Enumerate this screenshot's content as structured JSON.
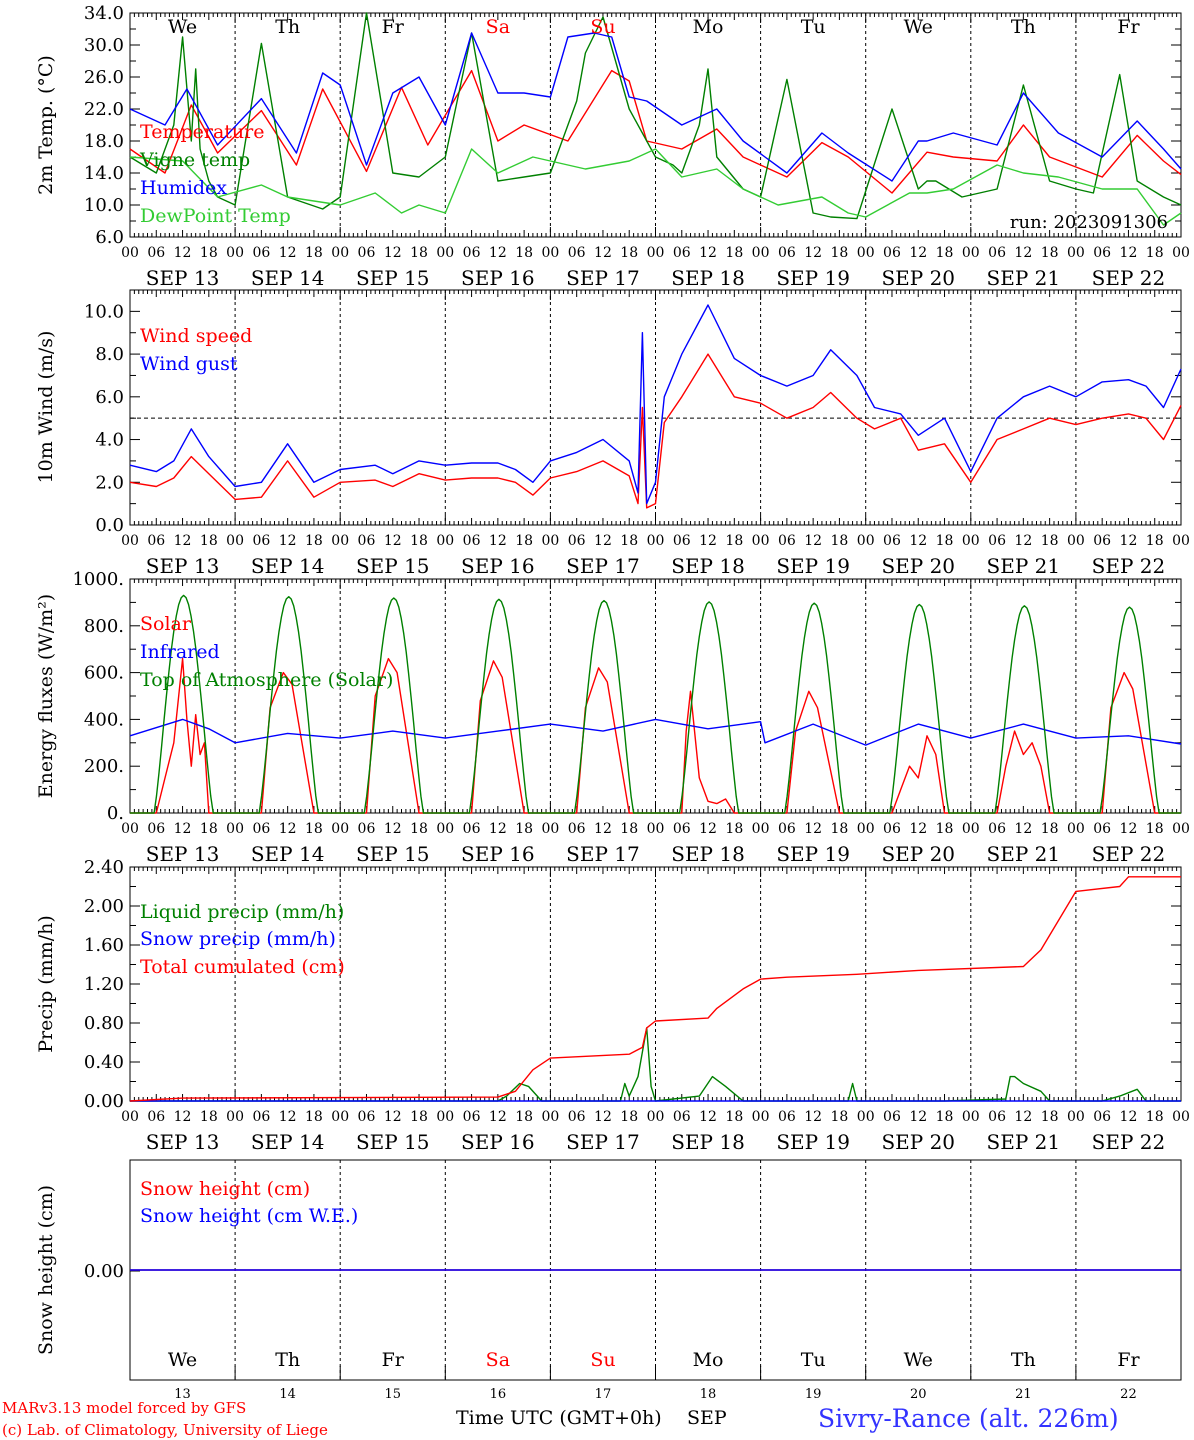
{
  "footer": {
    "model_line": "MARv3.13 model forced by GFS",
    "credit_line": "(c) Lab. of Climatology, University of Liege",
    "time_axis_label": "Time UTC (GMT+0h)",
    "month_label": "SEP",
    "station": "Sivry-Rance (alt. 226m)"
  },
  "colors": {
    "red": "#ff0000",
    "green": "#008000",
    "blue": "#0000ff",
    "lightgreen": "#33cc33",
    "weekend": "#ff0000",
    "weekday": "#000000"
  },
  "days": {
    "weekdays": [
      "We",
      "Th",
      "Fr",
      "Sa",
      "Su",
      "Mo",
      "Tu",
      "We",
      "Th",
      "Fr"
    ],
    "weekend": [
      false,
      false,
      false,
      true,
      true,
      false,
      false,
      false,
      false,
      false
    ],
    "dates": [
      "SEP 13",
      "SEP 14",
      "SEP 15",
      "SEP 16",
      "SEP 17",
      "SEP 18",
      "SEP 19",
      "SEP 20",
      "SEP 21",
      "SEP 22"
    ],
    "day_numbers": [
      "13",
      "14",
      "15",
      "16",
      "17",
      "18",
      "19",
      "20",
      "21",
      "22"
    ],
    "hour_ticks": [
      "00",
      "06",
      "12",
      "18"
    ],
    "end_tick": "00"
  },
  "chart_data": [
    {
      "type": "line",
      "panel": "temperature",
      "ylabel": "2m Temp. (°C)",
      "ylim": [
        6.0,
        34.0
      ],
      "yticks": [
        "6.0",
        "10.0",
        "14.0",
        "18.0",
        "22.0",
        "26.0",
        "30.0",
        "34.0"
      ],
      "annotation": "run: 2023091306",
      "x_unit": "hours since 2023-09-13 00 UTC",
      "series": [
        {
          "name": "Temperature",
          "color": "red",
          "x": [
            0,
            8,
            14,
            20,
            30,
            38,
            44,
            54,
            62,
            68,
            78,
            84,
            90,
            100,
            110,
            114,
            118,
            126,
            134,
            140,
            150,
            158,
            164,
            174,
            182,
            188,
            198,
            204,
            210,
            222,
            230,
            236,
            240
          ],
          "values": [
            17.0,
            14.0,
            22.5,
            16.5,
            21.8,
            15.0,
            24.5,
            14.2,
            24.7,
            17.5,
            26.8,
            18.0,
            20.0,
            18.0,
            26.8,
            25.5,
            18.0,
            17.0,
            19.5,
            16.0,
            13.5,
            17.8,
            16.0,
            11.5,
            16.6,
            16.0,
            15.5,
            20.0,
            16.0,
            13.5,
            18.7,
            15.5,
            13.8
          ]
        },
        {
          "name": "Vigne temp",
          "color": "green",
          "x": [
            0,
            6,
            10,
            12,
            14,
            15,
            16,
            18,
            20,
            24,
            30,
            36,
            44,
            48,
            54,
            60,
            66,
            72,
            78,
            84,
            90,
            96,
            102,
            104,
            108,
            114,
            120,
            124,
            126,
            130,
            132,
            134,
            140,
            144,
            150,
            156,
            160,
            166,
            174,
            180,
            182,
            184,
            190,
            198,
            204,
            210,
            216,
            220,
            226,
            230,
            236,
            240
          ],
          "values": [
            16.0,
            14.0,
            20.0,
            31.0,
            18.0,
            27.0,
            17.0,
            13.0,
            11.0,
            10.0,
            30.2,
            11.0,
            9.5,
            11.0,
            34.0,
            14.0,
            13.5,
            16.0,
            31.5,
            13.0,
            13.5,
            14.0,
            23.0,
            29.0,
            33.5,
            22.0,
            16.0,
            15.0,
            14.0,
            20.0,
            27.0,
            16.0,
            12.0,
            11.0,
            25.7,
            9.0,
            8.5,
            8.3,
            22.0,
            12.0,
            13.0,
            13.0,
            11.0,
            12.0,
            25.0,
            13.0,
            12.0,
            11.5,
            26.3,
            13.0,
            11.0,
            10.0
          ]
        },
        {
          "name": "Humidex",
          "color": "blue",
          "x": [
            0,
            8,
            13,
            20,
            30,
            38,
            44,
            48,
            54,
            60,
            66,
            72,
            78,
            84,
            90,
            96,
            100,
            106,
            110,
            114,
            118,
            126,
            134,
            140,
            150,
            158,
            164,
            174,
            180,
            182,
            188,
            198,
            204,
            212,
            222,
            230,
            236,
            240
          ],
          "values": [
            22.0,
            20.0,
            24.5,
            17.5,
            23.3,
            16.5,
            26.5,
            25.0,
            15.0,
            24.0,
            26.0,
            20.0,
            31.5,
            24.0,
            24.0,
            23.5,
            31.0,
            31.5,
            31.0,
            23.5,
            23.0,
            20.0,
            22.0,
            18.0,
            14.0,
            19.0,
            16.5,
            13.0,
            18.0,
            18.0,
            19.0,
            17.5,
            24.0,
            19.0,
            16.0,
            20.5,
            17.0,
            14.5
          ]
        },
        {
          "name": "DewPoint Temp",
          "color": "lightgreen",
          "x": [
            0,
            12,
            20,
            30,
            36,
            48,
            56,
            62,
            66,
            72,
            78,
            84,
            92,
            96,
            104,
            114,
            120,
            126,
            134,
            140,
            148,
            158,
            164,
            168,
            178,
            182,
            188,
            198,
            204,
            212,
            222,
            230,
            236,
            240
          ],
          "values": [
            16.0,
            15.5,
            11.0,
            12.5,
            11.0,
            10.0,
            11.5,
            9.0,
            10.0,
            9.0,
            17.0,
            14.0,
            16.0,
            15.5,
            14.5,
            15.5,
            17.0,
            13.5,
            14.5,
            12.0,
            10.0,
            11.0,
            9.0,
            8.5,
            11.5,
            11.5,
            12.0,
            15.0,
            14.0,
            13.5,
            12.0,
            12.0,
            7.5,
            9.0
          ]
        }
      ]
    },
    {
      "type": "line",
      "panel": "wind",
      "ylabel": "10m Wind (m/s)",
      "ylim": [
        0.0,
        11.0
      ],
      "yticks": [
        "0.0",
        "2.0",
        "4.0",
        "6.0",
        "8.0",
        "10.0"
      ],
      "reference_line": 5.0,
      "series": [
        {
          "name": "Wind speed",
          "color": "red",
          "x": [
            0,
            6,
            10,
            14,
            18,
            24,
            30,
            36,
            42,
            48,
            56,
            60,
            66,
            72,
            78,
            84,
            88,
            92,
            96,
            102,
            108,
            114,
            116,
            117,
            118,
            120,
            122,
            126,
            132,
            138,
            144,
            150,
            156,
            160,
            166,
            170,
            176,
            180,
            186,
            192,
            198,
            204,
            210,
            216,
            222,
            228,
            232,
            236,
            240
          ],
          "values": [
            2.0,
            1.8,
            2.2,
            3.2,
            2.4,
            1.2,
            1.3,
            3.0,
            1.3,
            2.0,
            2.1,
            1.8,
            2.4,
            2.1,
            2.2,
            2.2,
            2.0,
            1.4,
            2.2,
            2.5,
            3.0,
            2.3,
            1.0,
            5.5,
            0.8,
            1.0,
            4.8,
            6.0,
            8.0,
            6.0,
            5.7,
            5.0,
            5.5,
            6.2,
            5.0,
            4.5,
            5.0,
            3.5,
            3.8,
            2.0,
            4.0,
            4.5,
            5.0,
            4.7,
            5.0,
            5.2,
            5.0,
            4.0,
            5.6
          ]
        },
        {
          "name": "Wind gust",
          "color": "blue",
          "x": [
            0,
            6,
            10,
            14,
            18,
            24,
            30,
            36,
            42,
            48,
            56,
            60,
            66,
            72,
            78,
            84,
            88,
            92,
            96,
            102,
            108,
            114,
            116,
            117,
            118,
            120,
            122,
            126,
            132,
            138,
            144,
            150,
            156,
            160,
            166,
            170,
            176,
            180,
            186,
            192,
            198,
            204,
            210,
            216,
            222,
            228,
            232,
            236,
            240
          ],
          "values": [
            2.8,
            2.5,
            3.0,
            4.5,
            3.2,
            1.8,
            2.0,
            3.8,
            2.0,
            2.6,
            2.8,
            2.4,
            3.0,
            2.8,
            2.9,
            2.9,
            2.6,
            2.0,
            3.0,
            3.4,
            4.0,
            3.0,
            1.5,
            9.0,
            1.0,
            2.0,
            6.0,
            8.0,
            10.3,
            7.8,
            7.0,
            6.5,
            7.0,
            8.2,
            7.0,
            5.5,
            5.2,
            4.2,
            5.0,
            2.5,
            5.0,
            6.0,
            6.5,
            6.0,
            6.7,
            6.8,
            6.5,
            5.5,
            7.3
          ]
        }
      ]
    },
    {
      "type": "line",
      "panel": "energy",
      "ylabel": "Energy fluxes (W/m²)",
      "ylim": [
        0,
        1000
      ],
      "yticks": [
        "0.",
        "200.",
        "400.",
        "600.",
        "800.",
        "1000."
      ],
      "series": [
        {
          "name": "Solar",
          "color": "red",
          "x": [
            0,
            6,
            8,
            10,
            12,
            13,
            14,
            15,
            16,
            17,
            18,
            30,
            32,
            35,
            37,
            42,
            54,
            56,
            59,
            61,
            66,
            78,
            80,
            83,
            85,
            90,
            102,
            104,
            107,
            109,
            114,
            126,
            127,
            128,
            130,
            132,
            134,
            136,
            138,
            140,
            150,
            152,
            155,
            157,
            162,
            174,
            176,
            178,
            180,
            182,
            184,
            186,
            198,
            200,
            202,
            204,
            206,
            208,
            210,
            222,
            224,
            227,
            229,
            234,
            240
          ],
          "values": [
            0,
            0,
            150,
            300,
            660,
            400,
            200,
            420,
            250,
            300,
            0,
            0,
            450,
            600,
            550,
            0,
            0,
            500,
            660,
            600,
            0,
            0,
            480,
            650,
            580,
            0,
            0,
            450,
            620,
            560,
            0,
            0,
            350,
            520,
            150,
            50,
            40,
            60,
            0,
            0,
            0,
            350,
            520,
            450,
            0,
            0,
            100,
            200,
            150,
            330,
            250,
            0,
            0,
            200,
            350,
            250,
            300,
            200,
            0,
            0,
            450,
            600,
            530,
            0,
            0
          ]
        },
        {
          "name": "Infrared",
          "color": "blue",
          "x": [
            0,
            12,
            18,
            24,
            36,
            48,
            60,
            72,
            84,
            96,
            108,
            120,
            132,
            144,
            145,
            156,
            168,
            180,
            192,
            204,
            216,
            228,
            240
          ],
          "values": [
            330,
            400,
            360,
            300,
            340,
            320,
            350,
            320,
            350,
            380,
            350,
            400,
            360,
            390,
            300,
            380,
            290,
            380,
            320,
            380,
            320,
            330,
            295
          ]
        },
        {
          "name": "Top of Atmosphere (Solar)",
          "color": "green",
          "x": [
            0,
            5.5,
            12.25,
            19,
            24
          ],
          "values": [
            0,
            0,
            930,
            0,
            0
          ],
          "pattern": "repeats daily, peak declining from 930 to 880"
        }
      ]
    },
    {
      "type": "line",
      "panel": "precip",
      "ylabel": "Precip (mm/h)",
      "ylim": [
        0.0,
        2.4
      ],
      "yticks": [
        "0.00",
        "0.40",
        "0.80",
        "1.20",
        "1.60",
        "2.00",
        "2.40"
      ],
      "series": [
        {
          "name": "Liquid precip (mm/h)",
          "color": "green",
          "x": [
            0,
            84,
            86,
            89,
            91,
            93,
            94,
            112,
            113,
            114,
            116,
            118,
            119,
            120,
            130,
            133,
            136,
            140,
            152,
            164,
            165,
            166,
            186,
            200,
            201,
            202,
            204,
            208,
            210,
            222,
            226,
            230,
            232,
            240
          ],
          "values": [
            0,
            0,
            0.05,
            0.18,
            0.15,
            0.05,
            0,
            0,
            0.18,
            0.05,
            0.25,
            0.75,
            0.15,
            0,
            0.05,
            0.25,
            0.15,
            0,
            0,
            0,
            0.18,
            0,
            0,
            0.02,
            0.25,
            0.25,
            0.18,
            0.1,
            0,
            0,
            0.05,
            0.12,
            0,
            0
          ]
        },
        {
          "name": "Snow precip (mm/h)",
          "color": "blue",
          "x": [
            0,
            240
          ],
          "values": [
            0,
            0
          ]
        },
        {
          "name": "Total cumulated (cm)",
          "color": "red",
          "x": [
            0,
            12,
            84,
            88,
            92,
            96,
            114,
            117,
            118,
            120,
            132,
            134,
            140,
            144,
            150,
            166,
            180,
            204,
            208,
            216,
            226,
            228,
            240
          ],
          "values": [
            0.0,
            0.03,
            0.04,
            0.1,
            0.32,
            0.44,
            0.48,
            0.55,
            0.75,
            0.82,
            0.85,
            0.95,
            1.15,
            1.25,
            1.27,
            1.3,
            1.34,
            1.38,
            1.55,
            2.15,
            2.2,
            2.3,
            2.3
          ]
        }
      ]
    },
    {
      "type": "line",
      "panel": "snow",
      "ylabel": "Snow height (cm)",
      "yticks": [
        "0.00"
      ],
      "series": [
        {
          "name": "Snow height (cm)",
          "color": "red",
          "x": [
            0,
            240
          ],
          "values": [
            0,
            0
          ]
        },
        {
          "name": "Snow height (cm W.E.)",
          "color": "blue",
          "x": [
            0,
            240
          ],
          "values": [
            0,
            0
          ]
        }
      ]
    }
  ]
}
